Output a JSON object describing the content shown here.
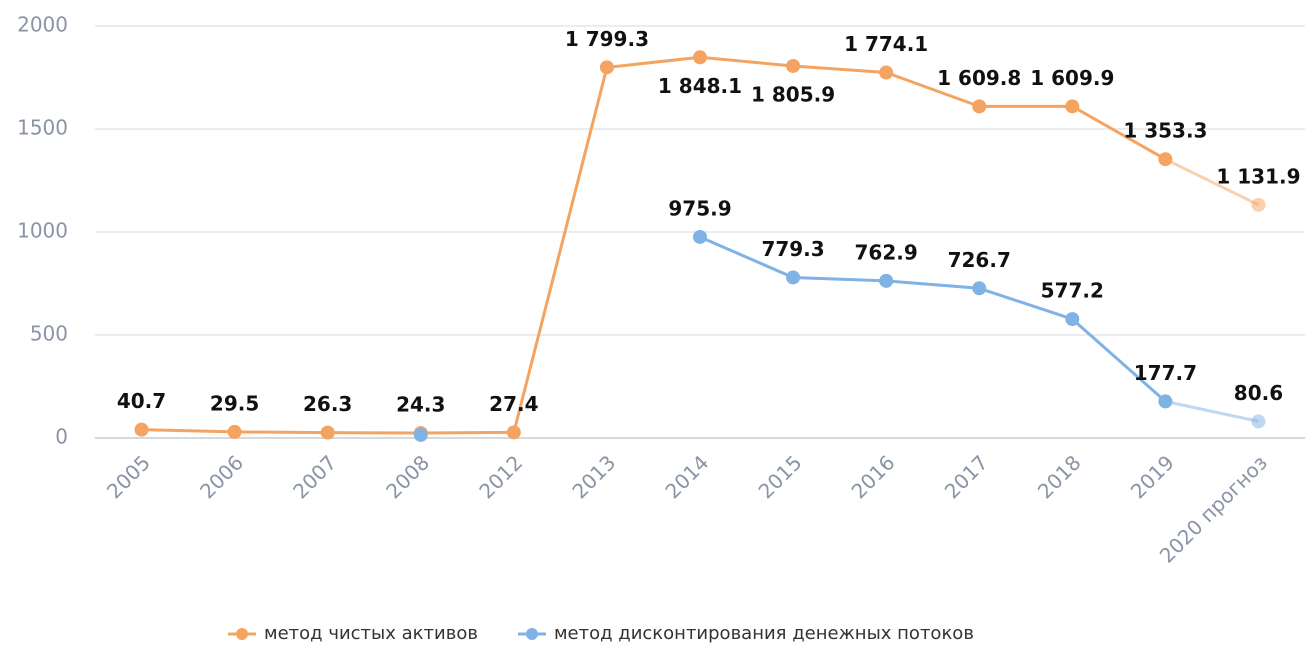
{
  "chart_data": {
    "type": "line",
    "categories": [
      "2005",
      "2006",
      "2007",
      "2008",
      "2012",
      "2013",
      "2014",
      "2015",
      "2016",
      "2017",
      "2018",
      "2019",
      "2020 прогноз"
    ],
    "series": [
      {
        "name": "метод чистых активов",
        "color": "#f4a460",
        "values": [
          40.7,
          29.5,
          26.3,
          24.3,
          27.4,
          1799.3,
          1848.1,
          1805.9,
          1774.1,
          1609.8,
          1609.9,
          1353.3,
          1131.9
        ],
        "value_labels": [
          "40.7",
          "29.5",
          "26.3",
          "24.3",
          "27.4",
          "1 799.3",
          "1 848.1",
          "1 805.9",
          "1 774.1",
          "1 609.8",
          "1 609.9",
          "1 353.3",
          "1 131.9"
        ]
      },
      {
        "name": "метод дисконтирования денежных потоков",
        "color": "#7fb2e5",
        "values": [
          null,
          null,
          null,
          15,
          null,
          null,
          975.9,
          779.3,
          762.9,
          726.7,
          577.2,
          177.7,
          80.6
        ],
        "value_labels": [
          null,
          null,
          null,
          null,
          null,
          null,
          "975.9",
          "779.3",
          "762.9",
          "726.7",
          "577.2",
          "177.7",
          "80.6"
        ]
      }
    ],
    "ylim": [
      0,
      2000
    ],
    "yticks": [
      0,
      500,
      1000,
      1500,
      2000
    ],
    "grid": true,
    "legend": "bottom"
  }
}
